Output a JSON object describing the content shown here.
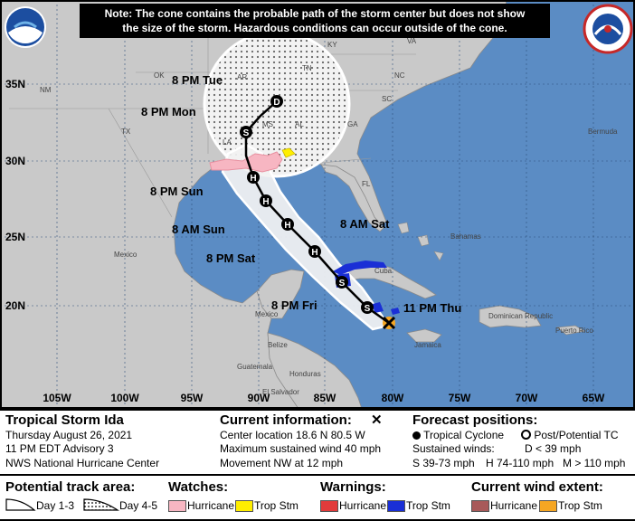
{
  "note": {
    "line1": "Note: The cone contains the probable path of the storm center but does not show",
    "line2": "the size of the storm. Hazardous conditions can occur outside of the cone."
  },
  "map": {
    "lat_labels": [
      "35N",
      "30N",
      "25N",
      "20N"
    ],
    "lon_labels": [
      "105W",
      "100W",
      "95W",
      "90W",
      "85W",
      "80W",
      "75W",
      "70W",
      "65W"
    ],
    "places": [
      "NM",
      "OK",
      "AR",
      "TN",
      "KY",
      "VA",
      "NC",
      "SC",
      "GA",
      "AL",
      "MS",
      "LA",
      "TX",
      "FL",
      "Bermuda",
      "Mexico",
      "Bahamas",
      "Cuba",
      "Mexico",
      "Belize",
      "Guatemala",
      "Honduras",
      "El Salvador",
      "Jamaica",
      "Dominican Republic",
      "Puerto Rico"
    ],
    "forecast_labels": [
      "8 PM Tue",
      "8 PM Mon",
      "8 PM Sun",
      "8 AM Sun",
      "8 PM Sat",
      "8 AM Sat",
      "8 PM Fri",
      "11 PM Thu"
    ],
    "forecast_markers": [
      "D",
      "S",
      "H",
      "H",
      "H",
      "H",
      "S",
      "S"
    ],
    "wind_colors": {
      "hurricane_warning": "#e23b3b",
      "trop_warning": "#1a2fd6",
      "trop_watch": "#ffee00",
      "hurricane_watch": "#f7b6c2",
      "trop_wind": "#f5a623"
    }
  },
  "info": {
    "storm_name": "Tropical Storm Ida",
    "date": "Thursday August 26, 2021",
    "advisory": "11 PM EDT Advisory 3",
    "center": "NWS National Hurricane Center",
    "current_title": "Current information:",
    "current_icon": "x-mark-icon",
    "location": "Center location 18.6 N 80.5 W",
    "max_wind": "Maximum sustained wind 40 mph",
    "movement": "Movement NW at 12 mph",
    "forecast_title": "Forecast positions:",
    "tropical_cyclone": "Tropical Cyclone",
    "post_tc": "Post/Potential TC",
    "sustained_winds": "Sustained winds:",
    "d_def": "D < 39 mph",
    "s_def": "S 39-73 mph",
    "h_def": "H 74-110 mph",
    "m_def": "M > 110 mph"
  },
  "legend": {
    "potential_title": "Potential track area:",
    "day13": "Day 1-3",
    "day45": "Day 4-5",
    "watches_title": "Watches:",
    "watch_hurricane": "Hurricane",
    "watch_trop": "Trop Stm",
    "warnings_title": "Warnings:",
    "warn_hurricane": "Hurricane",
    "warn_trop": "Trop Stm",
    "wind_title": "Current wind extent:",
    "wind_hurricane": "Hurricane",
    "wind_trop": "Trop Stm"
  }
}
